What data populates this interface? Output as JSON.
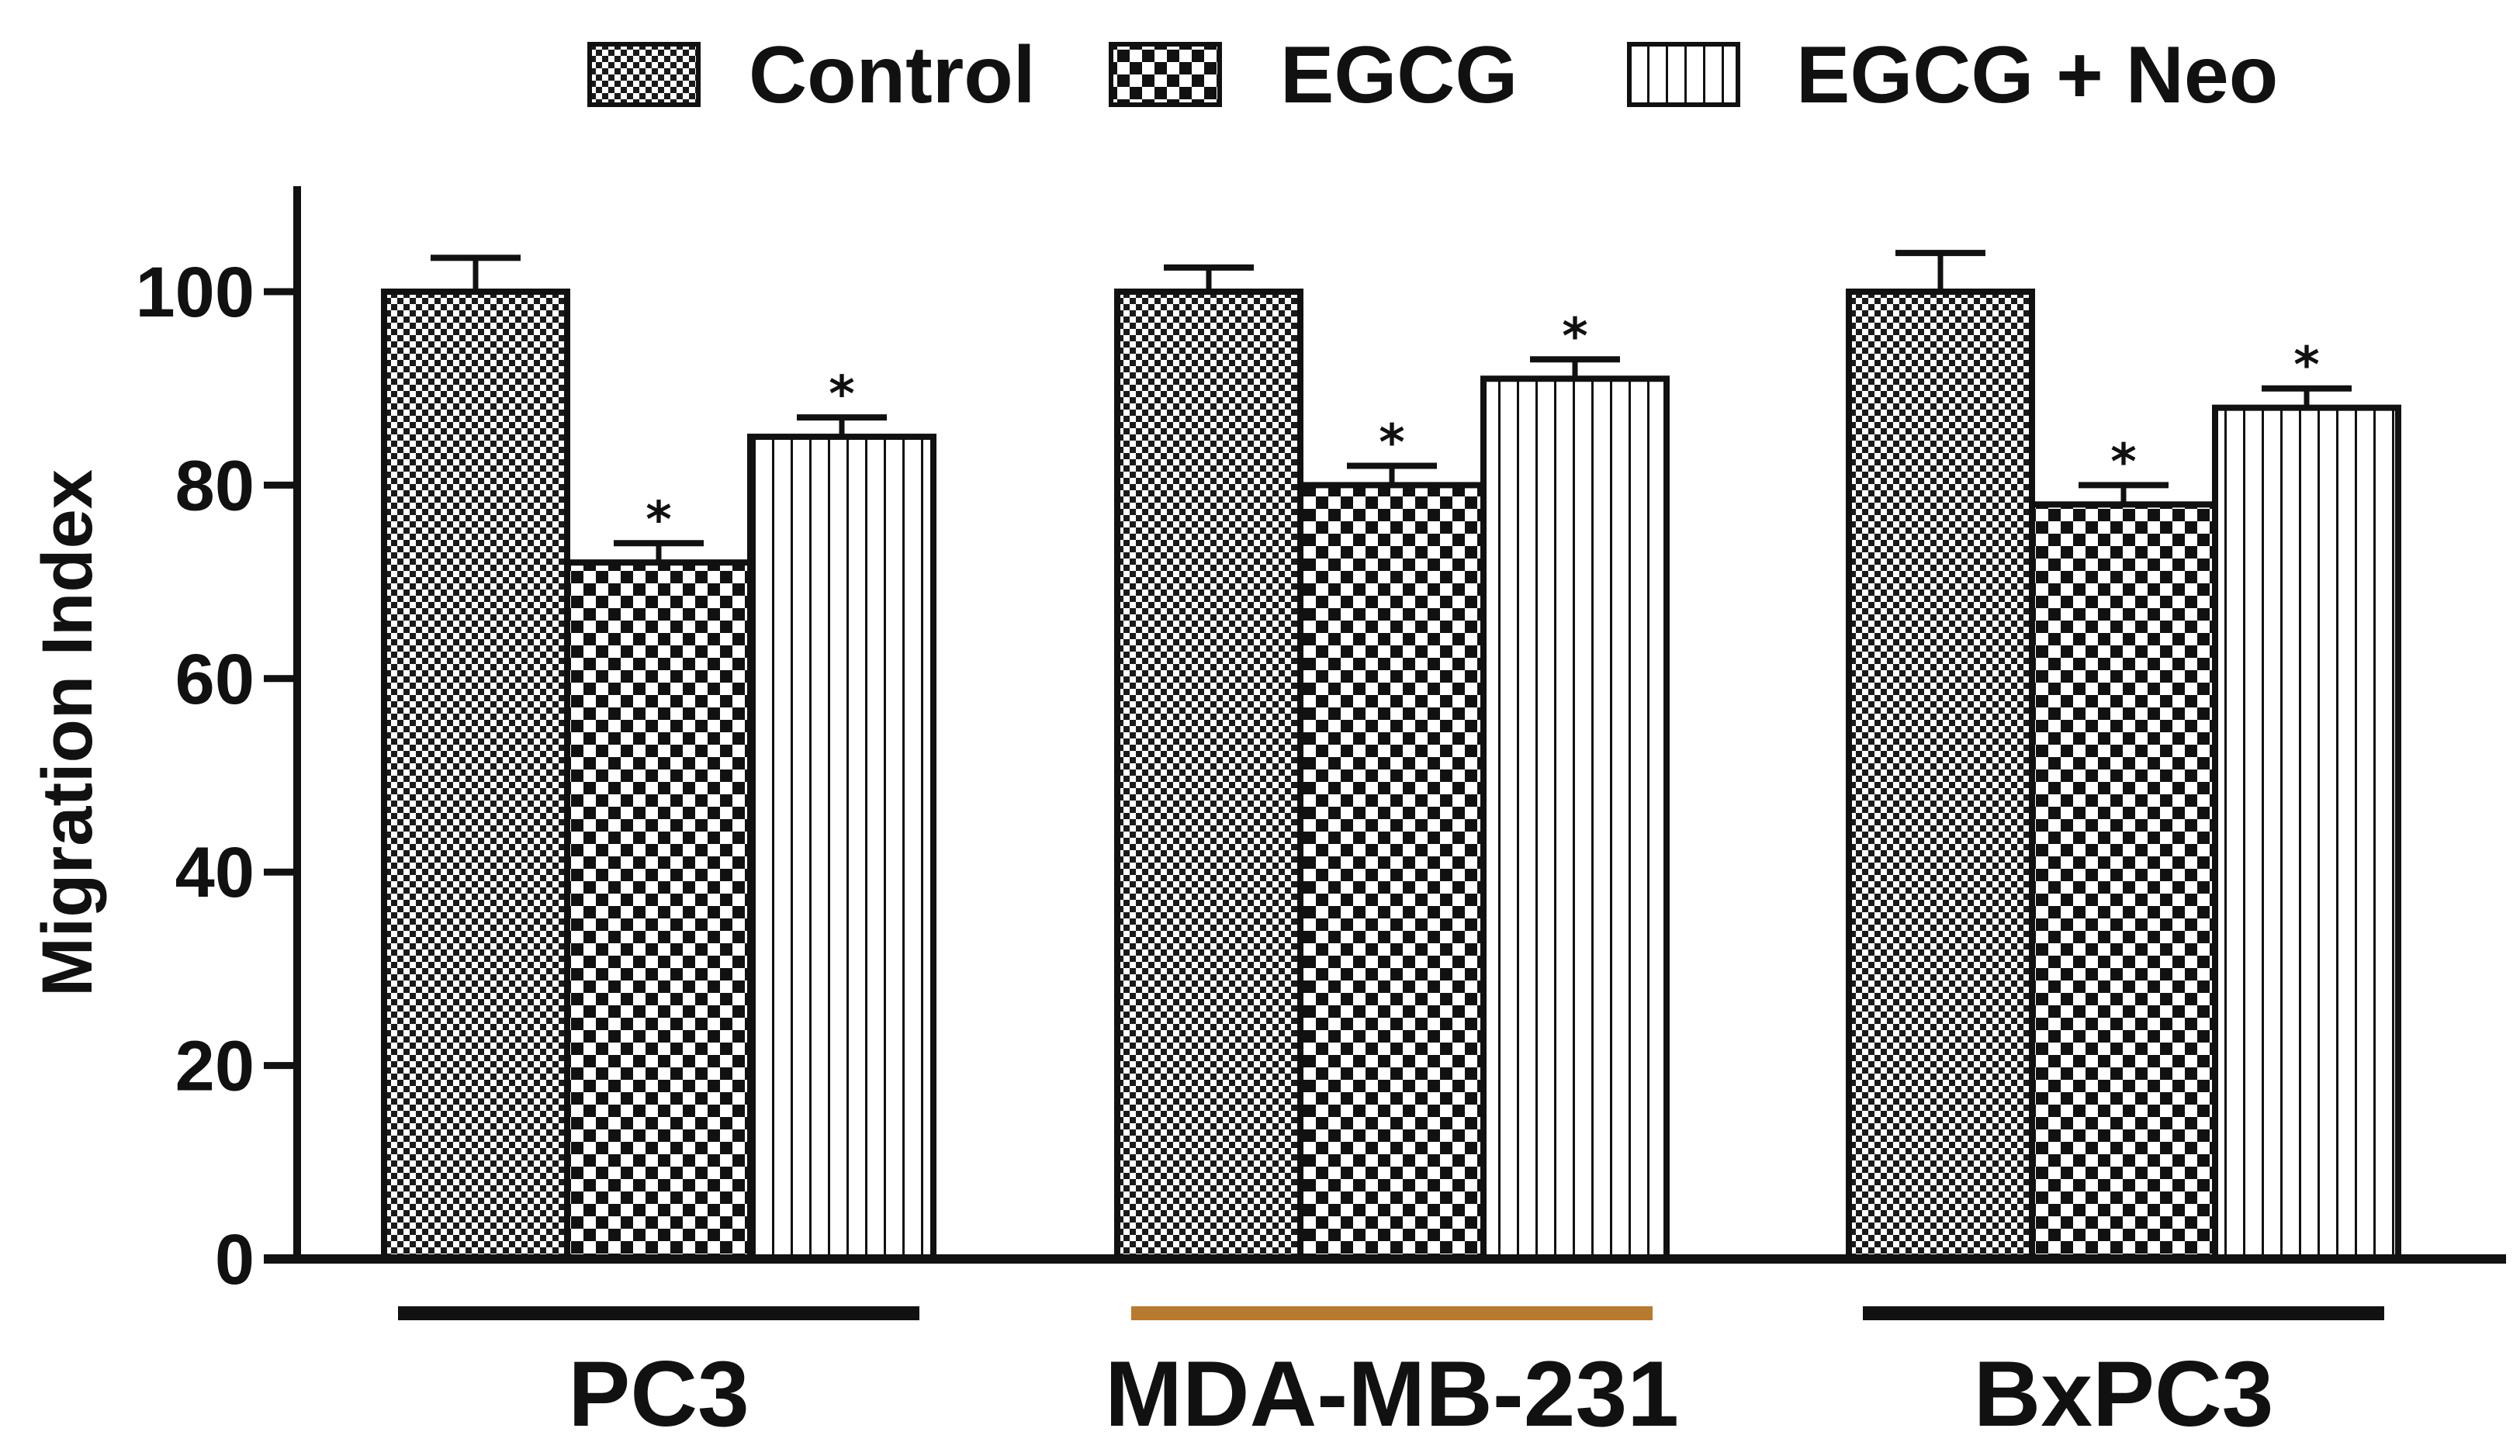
{
  "chart_data": {
    "type": "bar",
    "title": "",
    "xlabel": "",
    "ylabel": "Migration Index",
    "ylim": [
      0,
      110
    ],
    "yticks": [
      0,
      20,
      40,
      60,
      80,
      100
    ],
    "categories": [
      "PC3",
      "MDA-MB-231",
      "BxPC3"
    ],
    "legend_position": "top",
    "series": [
      {
        "name": "Control",
        "pattern": "fine-checker",
        "values": [
          100,
          100,
          100
        ],
        "errors": [
          3.5,
          2.5,
          4
        ],
        "significance": [
          "",
          "",
          ""
        ]
      },
      {
        "name": "EGCG",
        "pattern": "coarse-checker",
        "values": [
          72,
          80,
          78
        ],
        "errors": [
          2,
          2,
          2
        ],
        "significance": [
          "*",
          "*",
          "*"
        ]
      },
      {
        "name": "EGCG + Neo",
        "pattern": "vertical-stripes",
        "values": [
          85,
          91,
          88
        ],
        "errors": [
          2,
          2,
          2
        ],
        "significance": [
          "*",
          "*",
          "*"
        ]
      }
    ],
    "group_underline_colors": [
      "#111111",
      "#b87a2e",
      "#111111"
    ]
  }
}
